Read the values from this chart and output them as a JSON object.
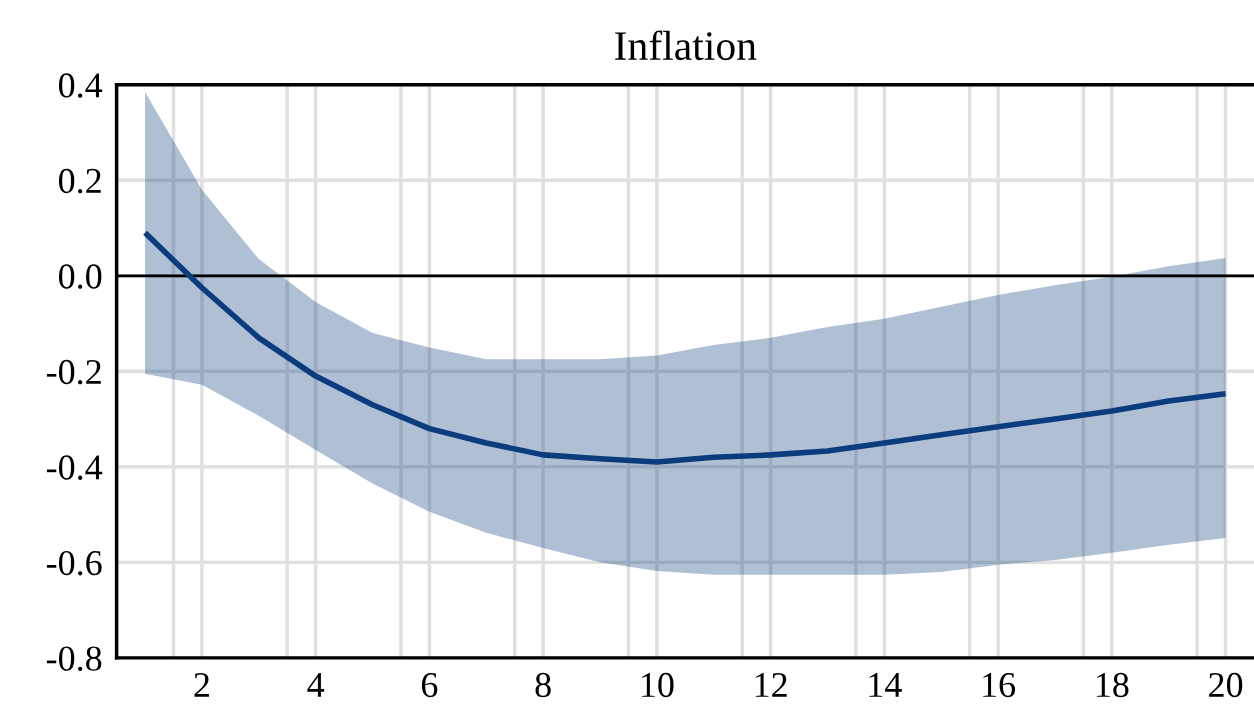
{
  "chart_data": {
    "type": "line",
    "title": "Inflation",
    "x": [
      1,
      2,
      3,
      4,
      5,
      6,
      7,
      8,
      9,
      10,
      11,
      12,
      13,
      14,
      15,
      16,
      17,
      18,
      19,
      20
    ],
    "series": [
      {
        "color": "#0b3c7d",
        "values": [
          0.09,
          -0.025,
          -0.13,
          -0.21,
          -0.27,
          -0.32,
          -0.35,
          -0.375,
          -0.383,
          -0.39,
          -0.38,
          -0.375,
          -0.367,
          -0.35,
          -0.333,
          -0.316,
          -0.3,
          -0.283,
          -0.262,
          -0.247
        ],
        "upper": [
          0.385,
          0.18,
          0.035,
          -0.055,
          -0.12,
          -0.15,
          -0.175,
          -0.175,
          -0.175,
          -0.167,
          -0.145,
          -0.13,
          -0.107,
          -0.09,
          -0.065,
          -0.04,
          -0.02,
          -0.002,
          0.02,
          0.037
        ],
        "lower": [
          -0.205,
          -0.228,
          -0.293,
          -0.365,
          -0.435,
          -0.494,
          -0.538,
          -0.57,
          -0.6,
          -0.618,
          -0.626,
          -0.626,
          -0.626,
          -0.626,
          -0.62,
          -0.605,
          -0.595,
          -0.58,
          -0.563,
          -0.549
        ]
      }
    ],
    "xlim": [
      0.5,
      20.5
    ],
    "xticks": [
      {
        "value": 1.5,
        "label": null
      },
      2,
      {
        "value": 3.5,
        "label": null
      },
      4,
      {
        "value": 5.5,
        "label": null
      },
      6,
      {
        "value": 7.5,
        "label": null
      },
      8,
      {
        "value": 9.5,
        "label": null
      },
      10,
      {
        "value": 11.5,
        "label": null
      },
      12,
      {
        "value": 13.5,
        "label": null
      },
      14,
      {
        "value": 15.5,
        "label": null
      },
      16,
      {
        "value": 17.5,
        "label": null
      },
      18,
      {
        "value": 19.5,
        "label": null
      },
      20
    ],
    "ylim": [
      -0.8,
      0.4
    ],
    "yticks": [
      -0.8,
      -0.6,
      -0.4,
      -0.2,
      {
        "value": 0,
        "label": "0.0"
      },
      0.2,
      0.4
    ],
    "ref_lines": [
      {
        "axis": "y",
        "value": 0,
        "color": "#000000"
      }
    ],
    "grid": true,
    "marker": "none",
    "line_style": "solid"
  }
}
